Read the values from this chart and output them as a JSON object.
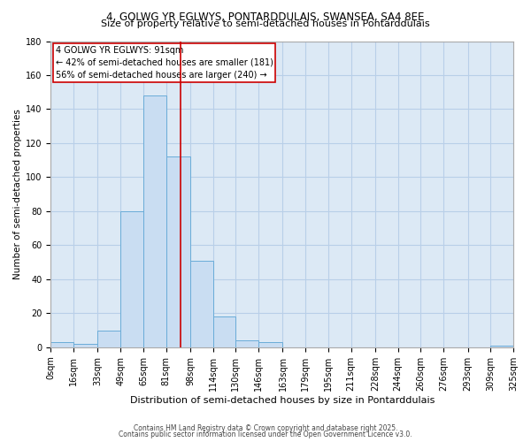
{
  "title1": "4, GOLWG YR EGLWYS, PONTARDDULAIS, SWANSEA, SA4 8EE",
  "title2": "Size of property relative to semi-detached houses in Pontarddulais",
  "xlabel": "Distribution of semi-detached houses by size in Pontarddulais",
  "ylabel": "Number of semi-detached properties",
  "bin_labels": [
    "0sqm",
    "16sqm",
    "33sqm",
    "49sqm",
    "65sqm",
    "81sqm",
    "98sqm",
    "114sqm",
    "130sqm",
    "146sqm",
    "163sqm",
    "179sqm",
    "195sqm",
    "211sqm",
    "228sqm",
    "244sqm",
    "260sqm",
    "276sqm",
    "293sqm",
    "309sqm",
    "325sqm"
  ],
  "bin_edges": [
    0,
    16,
    33,
    49,
    65,
    81,
    98,
    114,
    130,
    146,
    163,
    179,
    195,
    211,
    228,
    244,
    260,
    276,
    293,
    309,
    325
  ],
  "counts": [
    3,
    2,
    10,
    80,
    148,
    112,
    51,
    18,
    4,
    3,
    0,
    0,
    0,
    0,
    0,
    0,
    0,
    0,
    0,
    1
  ],
  "bar_color": "#c9ddf2",
  "bar_edge_color": "#6aacd8",
  "property_value": 91,
  "vline_color": "#cc0000",
  "annotation_line1": "4 GOLWG YR EGLWYS: 91sqm",
  "annotation_line2": "← 42% of semi-detached houses are smaller (181)",
  "annotation_line3": "56% of semi-detached houses are larger (240) →",
  "annotation_box_color": "#ffffff",
  "annotation_box_edge": "#cc0000",
  "footer1": "Contains HM Land Registry data © Crown copyright and database right 2025.",
  "footer2": "Contains public sector information licensed under the Open Government Licence v3.0.",
  "bg_color": "#ffffff",
  "plot_bg_color": "#dce9f5",
  "grid_color": "#b8cfe8",
  "ylim": [
    0,
    180
  ],
  "yticks": [
    0,
    20,
    40,
    60,
    80,
    100,
    120,
    140,
    160,
    180
  ],
  "title1_fontsize": 8.5,
  "title2_fontsize": 8.0,
  "ylabel_fontsize": 7.5,
  "xlabel_fontsize": 8.0,
  "tick_fontsize": 7.0,
  "ann_fontsize": 7.0,
  "footer_fontsize": 5.5
}
